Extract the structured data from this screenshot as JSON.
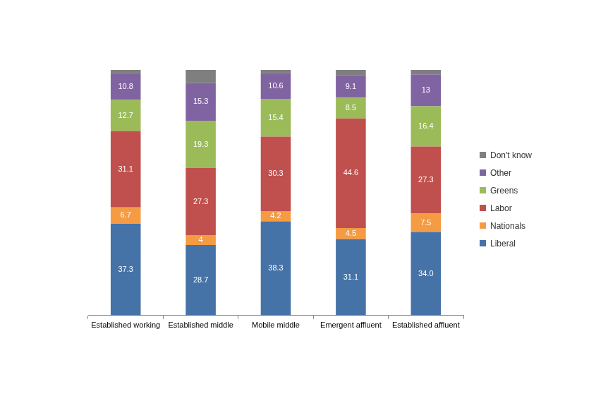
{
  "chart_data": {
    "type": "bar",
    "stacked": true,
    "data_labels": true,
    "tick_labels": "x",
    "legend": "right",
    "categories": [
      "Established working",
      "Established middle",
      "Mobile middle",
      "Emergent affluent",
      "Established affluent"
    ],
    "ylim": [
      0,
      100
    ],
    "series": [
      {
        "name": "Liberal",
        "color": "#4572A7",
        "values": [
          37.3,
          28.7,
          38.3,
          31.1,
          34.0
        ],
        "value_labels": [
          "37.3",
          "28.7",
          "38.3",
          "31.1",
          "34.0"
        ]
      },
      {
        "name": "Nationals",
        "color": "#F59B43",
        "values": [
          6.7,
          4,
          4.2,
          4.5,
          7.5
        ]
      },
      {
        "name": "Labor",
        "color": "#C0504D",
        "values": [
          31.1,
          27.3,
          30.3,
          44.6,
          27.3
        ]
      },
      {
        "name": "Greens",
        "color": "#9BBB59",
        "values": [
          12.7,
          19.3,
          15.4,
          8.5,
          16.4
        ]
      },
      {
        "name": "Other",
        "color": "#8064A2",
        "values": [
          10.8,
          15.3,
          10.6,
          9.1,
          13
        ]
      },
      {
        "name": "Don't know",
        "color": "#7F7F7F",
        "values": [
          1.4,
          5.4,
          1.2,
          2.2,
          1.8
        ],
        "value_labels": [
          null,
          null,
          null,
          null,
          null
        ]
      }
    ]
  }
}
